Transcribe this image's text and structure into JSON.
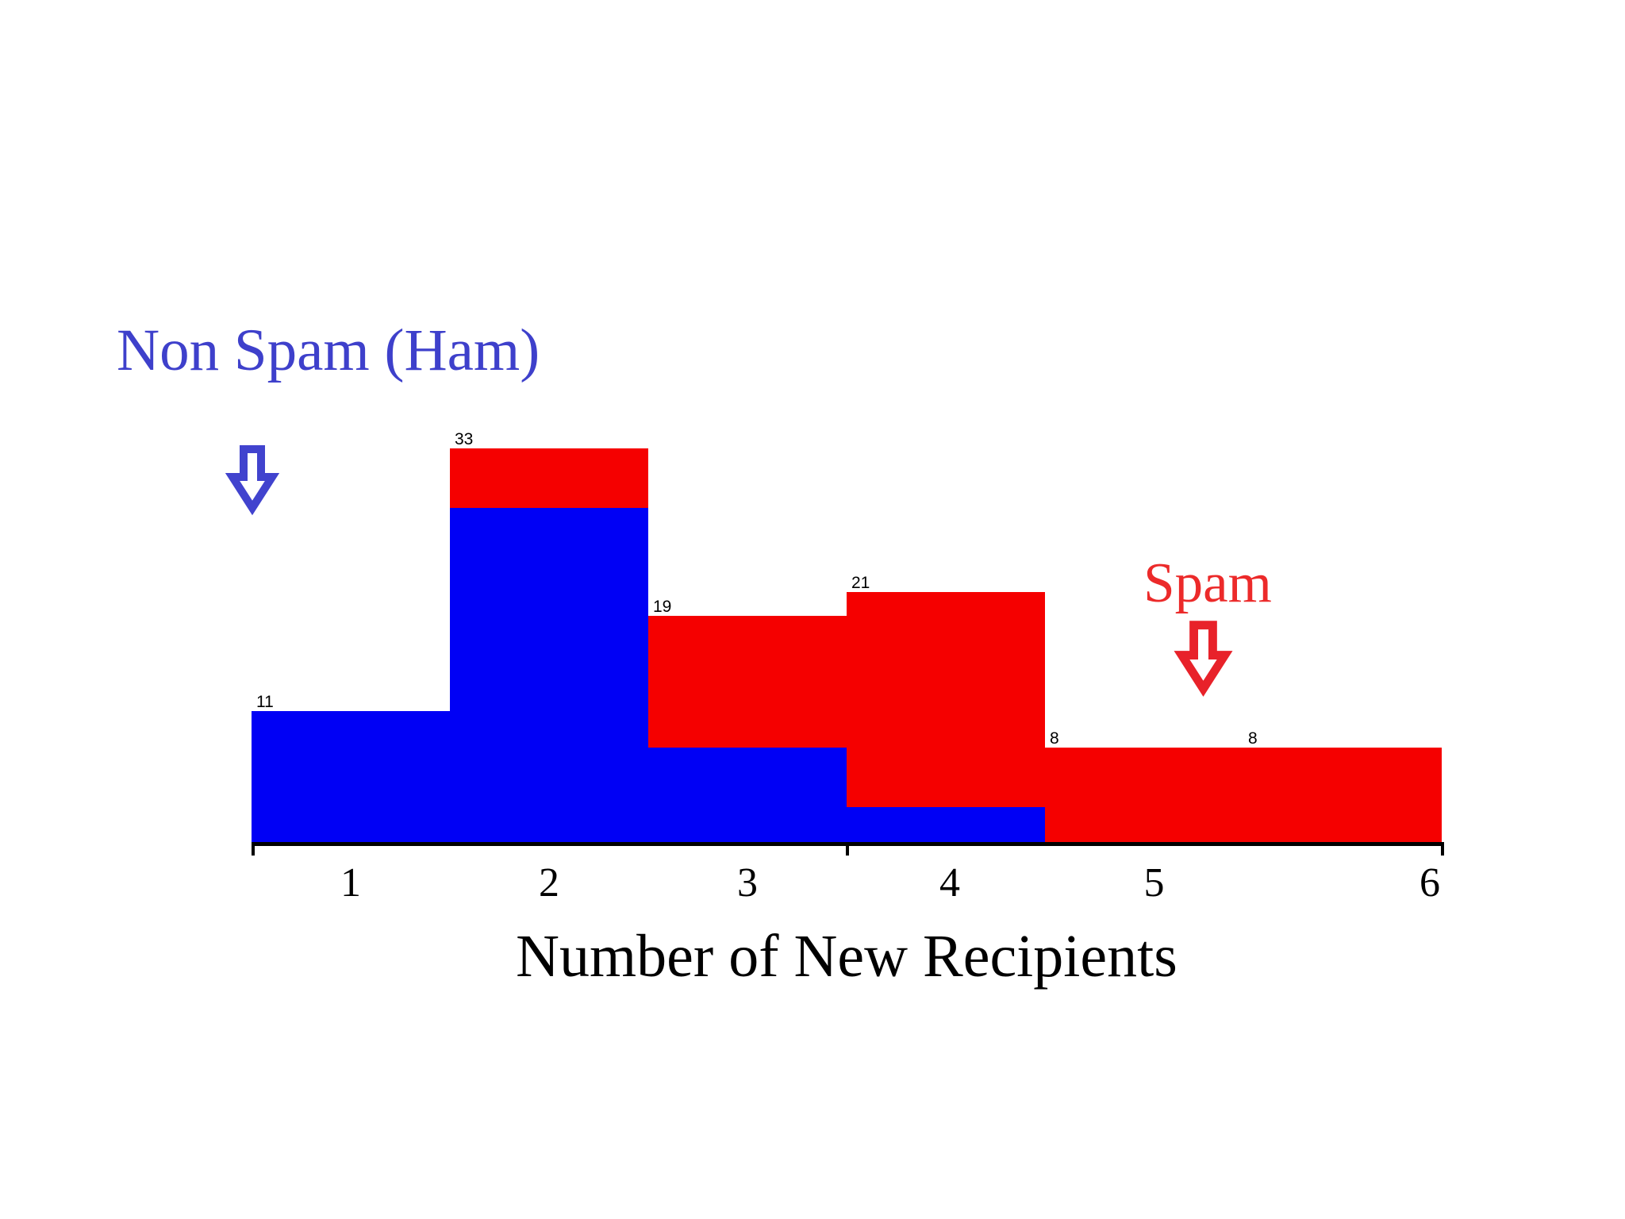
{
  "figure": {
    "background": "#ffffff"
  },
  "annotations": {
    "ham": {
      "label": "Non Spam (Ham)"
    },
    "spam": {
      "label": "Spam"
    }
  },
  "colors": {
    "ham_bar": "#0000f5",
    "spam_bar": "#f50000",
    "ham_text": "#3e40cb",
    "ham_arrow": "#4143ce",
    "spam_text": "#ec2a2a",
    "spam_arrow": "#e8222a",
    "axis": "#000000",
    "bar_label": "#000000",
    "tick_label": "#000000",
    "background": "#ffffff"
  },
  "chart_data": {
    "type": "bar",
    "subtype": "overlaid histogram, ham series drawn in front of spam series",
    "title": "",
    "xlabel": "Number of New Recipients",
    "ylabel": "",
    "bin_centers": [
      1,
      2,
      3,
      4,
      5,
      6
    ],
    "bin_width": 1,
    "series": [
      {
        "name": "Spam",
        "color": "#f50000",
        "values": [
          0,
          33,
          19,
          21,
          8,
          8
        ]
      },
      {
        "name": "Non Spam (Ham)",
        "color": "#0000f5",
        "values": [
          11,
          28,
          8,
          3,
          0,
          0
        ]
      }
    ],
    "bar_value_labels": [
      "11",
      "33",
      "19",
      "21",
      "8",
      "8"
    ],
    "x_tick_marks_at": [
      0.5,
      3.5,
      6.5
    ],
    "x_tick_labels": [
      {
        "text": "1",
        "x": 1.0
      },
      {
        "text": "2",
        "x": 2.0
      },
      {
        "text": "3",
        "x": 3.0
      },
      {
        "text": "4",
        "x": 4.02
      },
      {
        "text": "5",
        "x": 5.05
      },
      {
        "text": "6",
        "x": 6.44
      }
    ],
    "ylim": [
      0,
      36
    ],
    "grid": false,
    "legend_position": "none (colored text labels with down arrows used instead of legend)"
  }
}
